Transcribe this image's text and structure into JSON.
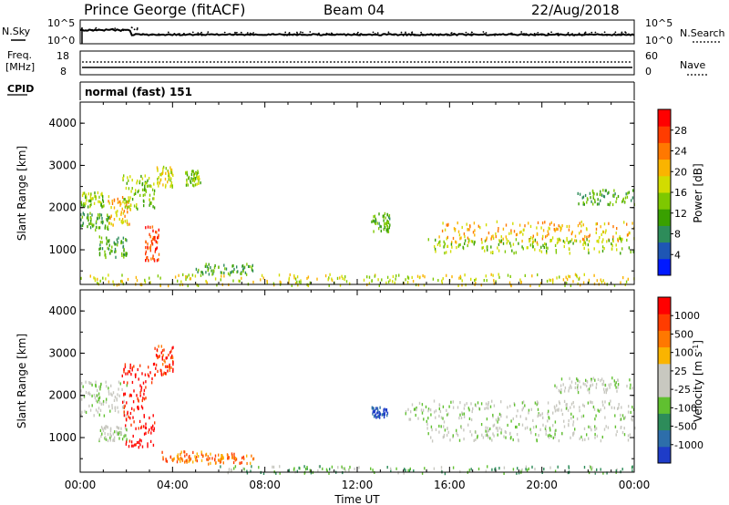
{
  "header": {
    "site": "Prince George (fitACF)",
    "beam": "Beam 04",
    "date": "22/Aug/2018"
  },
  "sky_panel": {
    "left_label": "N.Sky",
    "right_label": "N.Search",
    "left_ticks": [
      "10^5",
      "10^0"
    ],
    "right_ticks": [
      "10^5",
      "10^0"
    ]
  },
  "freq_panel": {
    "left_label_1": "Freq.",
    "left_label_2": "[MHz]",
    "right_label": "Nave",
    "left_ticks": [
      "18",
      "8"
    ],
    "right_ticks": [
      "60",
      "0"
    ]
  },
  "cpid": {
    "label": "CPID",
    "value": "normal (fast) 151"
  },
  "colors": {
    "scale": [
      "#0019ff",
      "#1e56b4",
      "#2d8c5a",
      "#39a000",
      "#7ec800",
      "#d2dc00",
      "#fab400",
      "#ff7800",
      "#ff3c00",
      "#ff0000"
    ],
    "velocity_scale": [
      "#1e3cc8",
      "#2d6eaa",
      "#2d8c5a",
      "#60c030",
      "#c8c8c0",
      "#c8c8c0",
      "#fab400",
      "#ff7800",
      "#ff3c00",
      "#ff0000"
    ],
    "ground": "#c8c8c0"
  },
  "chart_data": [
    {
      "type": "heatmap",
      "panel": "power",
      "ylabel": "Slant Range [km]",
      "yticks": [
        "1000",
        "2000",
        "3000",
        "4000"
      ],
      "ylim": [
        180,
        4500
      ],
      "xlim": [
        0,
        24
      ],
      "colorbar_label": "Power [dB]",
      "colorbar_ticks": [
        "4",
        "8",
        "12",
        "16",
        "20",
        "24",
        "28"
      ],
      "regions": [
        {
          "t0": 0.0,
          "t1": 1.3,
          "r0": 1500,
          "r1": 1900,
          "level": 3
        },
        {
          "t0": 0.0,
          "t1": 1.0,
          "r0": 2050,
          "r1": 2400,
          "level": 4
        },
        {
          "t0": 1.2,
          "t1": 2.2,
          "r0": 1600,
          "r1": 2300,
          "level": 6
        },
        {
          "t0": 1.8,
          "t1": 3.2,
          "r0": 2000,
          "r1": 2800,
          "level": 4
        },
        {
          "t0": 2.8,
          "t1": 3.4,
          "r0": 750,
          "r1": 1600,
          "level": 8
        },
        {
          "t0": 3.3,
          "t1": 4.0,
          "r0": 2500,
          "r1": 3000,
          "level": 5
        },
        {
          "t0": 4.5,
          "t1": 5.2,
          "r0": 2550,
          "r1": 2900,
          "level": 4
        },
        {
          "t0": 0.8,
          "t1": 2.0,
          "r0": 850,
          "r1": 1350,
          "level": 3
        },
        {
          "t0": 5.0,
          "t1": 7.5,
          "r0": 450,
          "r1": 700,
          "level": 3
        },
        {
          "t0": 12.6,
          "t1": 13.4,
          "r0": 1450,
          "r1": 1900,
          "level": 3
        },
        {
          "t0": 15.5,
          "t1": 24.0,
          "r0": 1200,
          "r1": 1700,
          "level": 6
        },
        {
          "t0": 15.0,
          "t1": 24.0,
          "r0": 950,
          "r1": 1300,
          "level": 4
        },
        {
          "t0": 21.5,
          "t1": 24.0,
          "r0": 2100,
          "r1": 2450,
          "level": 3
        },
        {
          "t0": 0.0,
          "t1": 24.0,
          "r0": 180,
          "r1": 450,
          "level": 5
        }
      ]
    },
    {
      "type": "heatmap",
      "panel": "velocity",
      "ylabel": "Slant Range [km]",
      "xlabel": "Time UT",
      "xticks": [
        "00:00",
        "04:00",
        "08:00",
        "12:00",
        "16:00",
        "20:00",
        "00:00"
      ],
      "yticks": [
        "1000",
        "2000",
        "3000",
        "4000"
      ],
      "ylim": [
        180,
        4500
      ],
      "xlim": [
        0,
        24
      ],
      "colorbar_label": "Velocity [m s^-1]",
      "colorbar_ticks": [
        "1000",
        "500",
        "100",
        "25",
        "-25",
        "-100",
        "-500",
        "-1000"
      ],
      "regions": [
        {
          "t0": 0.0,
          "t1": 2.0,
          "r0": 1550,
          "r1": 2350,
          "level": 4
        },
        {
          "t0": 1.8,
          "t1": 3.2,
          "r0": 800,
          "r1": 2800,
          "level": 9
        },
        {
          "t0": 3.2,
          "t1": 4.0,
          "r0": 2500,
          "r1": 3200,
          "level": 8
        },
        {
          "t0": 3.5,
          "t1": 5.5,
          "r0": 450,
          "r1": 700,
          "level": 7
        },
        {
          "t0": 5.5,
          "t1": 7.5,
          "r0": 400,
          "r1": 650,
          "level": 7
        },
        {
          "t0": 0.8,
          "t1": 2.0,
          "r0": 950,
          "r1": 1300,
          "level": 4
        },
        {
          "t0": 12.6,
          "t1": 13.3,
          "r0": 1500,
          "r1": 1750,
          "level": 0
        },
        {
          "t0": 14.0,
          "t1": 24.0,
          "r0": 1400,
          "r1": 1900,
          "level": 4
        },
        {
          "t0": 15.0,
          "t1": 24.0,
          "r0": 950,
          "r1": 1350,
          "level": 4
        },
        {
          "t0": 20.5,
          "t1": 24.0,
          "r0": 2100,
          "r1": 2450,
          "level": 4
        },
        {
          "t0": 6.0,
          "t1": 24.0,
          "r0": 180,
          "r1": 350,
          "level": 3
        }
      ]
    }
  ]
}
